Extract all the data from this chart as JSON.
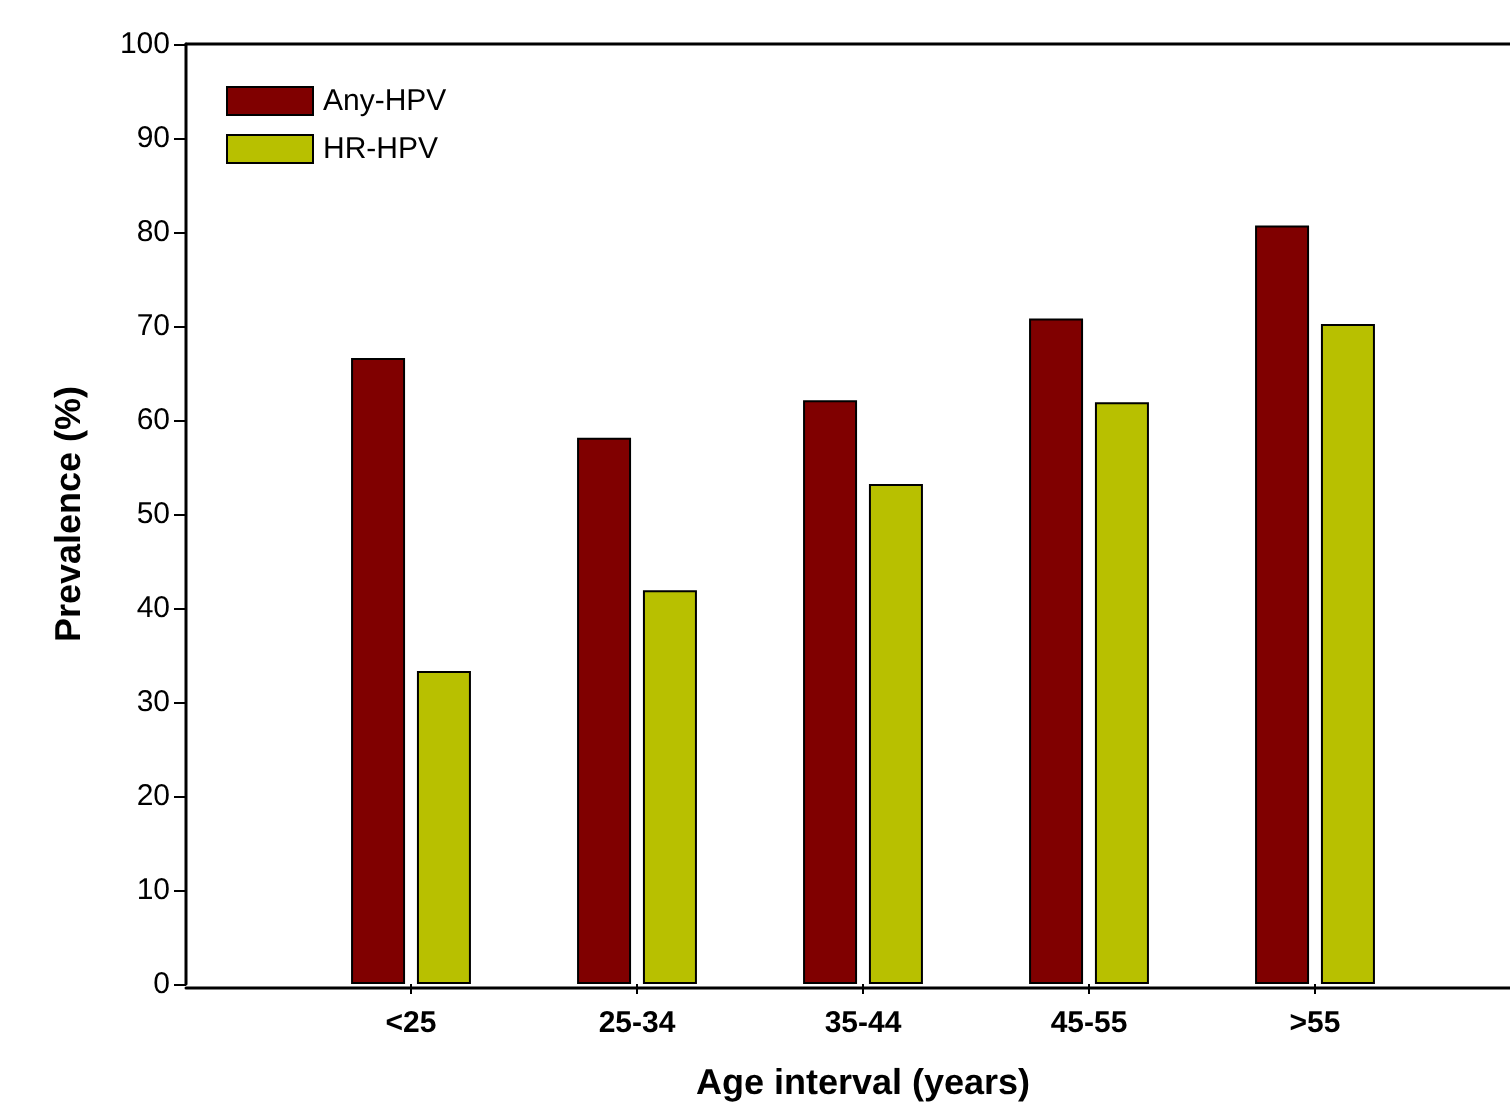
{
  "chart_data": {
    "type": "bar",
    "xlabel": "Age interval (years)",
    "ylabel": "Prevalence (%)",
    "categories": [
      "<25",
      "25-34",
      "35-44",
      "45-55",
      ">55"
    ],
    "series": [
      {
        "name": "Any-HPV",
        "color": "#800000",
        "values": [
          66.6,
          58.1,
          62.1,
          70.8,
          80.7
        ]
      },
      {
        "name": "HR-HPV",
        "color": "#b8c000",
        "values": [
          33.3,
          41.9,
          53.2,
          61.9,
          70.2
        ]
      }
    ],
    "ylim": [
      0,
      100
    ],
    "yticks": [
      0,
      10,
      20,
      30,
      40,
      50,
      60,
      70,
      80,
      90,
      100
    ],
    "grid": false,
    "legend": "top left"
  }
}
